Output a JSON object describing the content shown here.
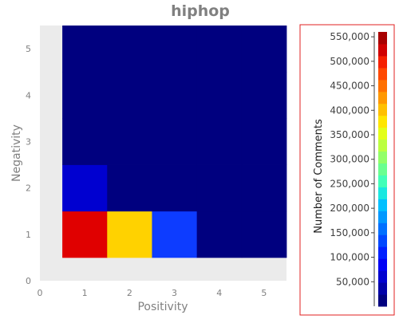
{
  "chart_data": {
    "type": "heatmap",
    "title": "hiphop",
    "xlabel": "Positivity",
    "ylabel": "Negativity",
    "xlim": [
      0,
      5.5
    ],
    "ylim": [
      0,
      5.5
    ],
    "x_ticks": [
      "0",
      "1",
      "2",
      "3",
      "4",
      "5"
    ],
    "y_ticks": [
      "0",
      "1",
      "2",
      "3",
      "4",
      "5"
    ],
    "x": [
      1,
      2,
      3,
      4,
      5
    ],
    "y": [
      1,
      2,
      3,
      4,
      5
    ],
    "cells": [
      {
        "x": 1,
        "y": 1,
        "color": "#e00000"
      },
      {
        "x": 2,
        "y": 1,
        "color": "#ffd200"
      },
      {
        "x": 3,
        "y": 1,
        "color": "#0d3cff"
      },
      {
        "x": 4,
        "y": 1,
        "color": "#00007f"
      },
      {
        "x": 5,
        "y": 1,
        "color": "#00007f"
      },
      {
        "x": 1,
        "y": 2,
        "color": "#0000d0"
      },
      {
        "x": 2,
        "y": 2,
        "color": "#00007f"
      },
      {
        "x": 3,
        "y": 2,
        "color": "#00007f"
      },
      {
        "x": 4,
        "y": 2,
        "color": "#00007f"
      },
      {
        "x": 5,
        "y": 2,
        "color": "#00007f"
      },
      {
        "x": 1,
        "y": 3,
        "color": "#00007f"
      },
      {
        "x": 2,
        "y": 3,
        "color": "#00007f"
      },
      {
        "x": 3,
        "y": 3,
        "color": "#00007f"
      },
      {
        "x": 4,
        "y": 3,
        "color": "#00007f"
      },
      {
        "x": 5,
        "y": 3,
        "color": "#00007f"
      },
      {
        "x": 1,
        "y": 4,
        "color": "#00007f"
      },
      {
        "x": 2,
        "y": 4,
        "color": "#00007f"
      },
      {
        "x": 3,
        "y": 4,
        "color": "#00007f"
      },
      {
        "x": 4,
        "y": 4,
        "color": "#00007f"
      },
      {
        "x": 5,
        "y": 4,
        "color": "#00007f"
      },
      {
        "x": 1,
        "y": 5,
        "color": "#00007f"
      },
      {
        "x": 2,
        "y": 5,
        "color": "#00007f"
      },
      {
        "x": 3,
        "y": 5,
        "color": "#00007f"
      },
      {
        "x": 4,
        "y": 5,
        "color": "#00007f"
      },
      {
        "x": 5,
        "y": 5,
        "color": "#00007f"
      }
    ],
    "colorbar": {
      "title": "Number of Comments",
      "range": [
        0,
        560000
      ],
      "tick_values": [
        50000,
        100000,
        150000,
        200000,
        250000,
        300000,
        350000,
        400000,
        450000,
        500000,
        550000
      ],
      "tick_labels": [
        "50,000",
        "100,000",
        "150,000",
        "200,000",
        "250,000",
        "300,000",
        "350,000",
        "400,000",
        "450,000",
        "500,000",
        "550,000"
      ],
      "bands": [
        "#00007f",
        "#0000a8",
        "#0000d0",
        "#0000f5",
        "#0020ff",
        "#0048ff",
        "#0070ff",
        "#0098ff",
        "#00c0ff",
        "#1ae8e0",
        "#42ffb8",
        "#6aff90",
        "#92ff68",
        "#bbff40",
        "#e3ff18",
        "#ffe600",
        "#ffc000",
        "#ff9800",
        "#ff7000",
        "#ff4800",
        "#f52000",
        "#d00000",
        "#a80000"
      ]
    },
    "grid": false,
    "legend": "colorbar-right"
  },
  "colors": {
    "plot_background": "#ebebeb",
    "colorbar_border": "#e02020",
    "axis_text": "#808080"
  }
}
